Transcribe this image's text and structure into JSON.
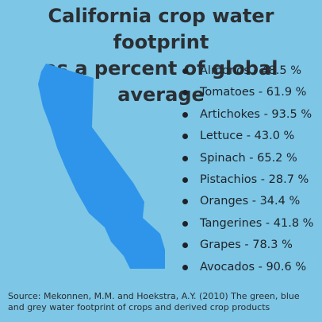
{
  "title_line1": "California crop water footprint",
  "title_line2": "as a percent of global average",
  "chart_data": {
    "type": "table",
    "title": "California crop water footprint as a percent of global average",
    "unit": "%",
    "items": [
      {
        "label": "Almonds - 48.5 %",
        "crop": "Almonds",
        "value": 48.5
      },
      {
        "label": "Tomatoes - 61.9 %",
        "crop": "Tomatoes",
        "value": 61.9
      },
      {
        "label": "Artichokes - 93.5 %",
        "crop": "Artichokes",
        "value": 93.5
      },
      {
        "label": "Lettuce - 43.0 %",
        "crop": "Lettuce",
        "value": 43.0
      },
      {
        "label": "Spinach - 65.2 %",
        "crop": "Spinach",
        "value": 65.2
      },
      {
        "label": "Pistachios - 28.7 %",
        "crop": "Pistachios",
        "value": 28.7
      },
      {
        "label": "Oranges - 34.4 %",
        "crop": "Oranges",
        "value": 34.4
      },
      {
        "label": "Tangerines - 41.8 %",
        "crop": "Tangerines",
        "value": 41.8
      },
      {
        "label": "Grapes - 78.3 %",
        "crop": "Grapes",
        "value": 78.3
      },
      {
        "label": "Avocados - 90.6 %",
        "crop": "Avocados",
        "value": 90.6
      }
    ]
  },
  "source_line1": "Source: Mekonnen, M.M. and Hoekstra, A.Y. (2010) The green, blue",
  "source_line2": "and grey water footprint of crops and derived crop products",
  "colors": {
    "background": "#7dc6e6",
    "map_fill": "#2e95ea",
    "text": "#1f2328"
  }
}
